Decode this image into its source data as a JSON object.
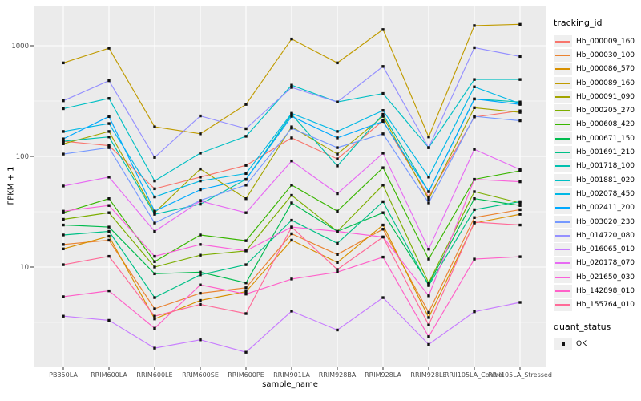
{
  "figure": {
    "background": "#FFFFFF",
    "panel_bg": "#EBEBEB",
    "grid_color": "#FFFFFF",
    "tick_color": "#333333",
    "tick_label_color": "#4D4D4D",
    "marker_color": "#111111"
  },
  "chart_data": {
    "type": "line",
    "title": "",
    "xlabel": "sample_name",
    "ylabel": "FPKM + 1",
    "y_scale": "log10",
    "ylim": [
      1.3,
      2200
    ],
    "y_ticks": [
      10,
      100,
      1000
    ],
    "y_tick_labels": [
      "10",
      "100",
      "1000"
    ],
    "y_minor_ticks": [
      3.1623,
      31.623,
      316.23
    ],
    "grid": "on",
    "legend_position": "right",
    "legend_title": "tracking_id",
    "legend2": {
      "title": "quant_status",
      "item": "OK",
      "marker": "black-square"
    },
    "categories": [
      "PB350LA",
      "RRIM600LA",
      "RRIM600LE",
      "RRIM600SE",
      "RRIM600PE",
      "RRIM901LA",
      "RRIM928BA",
      "RRIM928LA",
      "RRIM928LE",
      "RRII105LA_Control",
      "RRII105LA_Stressed"
    ],
    "series": [
      {
        "name": "Hb_000009_160",
        "color": "#F8766D",
        "values": [
          137,
          125,
          51,
          65,
          83,
          147,
          95,
          210,
          43,
          227,
          258
        ]
      },
      {
        "name": "Hb_000030_100",
        "color": "#EA8331",
        "values": [
          16,
          17.5,
          4.2,
          5.8,
          6.5,
          20,
          13,
          22,
          3.9,
          28,
          33
        ]
      },
      {
        "name": "Hb_000086_570",
        "color": "#D89000",
        "values": [
          14.6,
          19,
          3.4,
          5,
          6,
          17.5,
          11,
          24,
          3.5,
          25,
          30
        ]
      },
      {
        "name": "Hb_000089_160",
        "color": "#C09B00",
        "values": [
          700,
          950,
          185,
          160,
          295,
          1150,
          700,
          1400,
          150,
          1520,
          1560
        ]
      },
      {
        "name": "Hb_000091_090",
        "color": "#A3A500",
        "values": [
          130,
          168,
          31,
          77,
          41.5,
          185,
          105,
          230,
          41,
          275,
          250
        ]
      },
      {
        "name": "Hb_000205_270",
        "color": "#7CAE00",
        "values": [
          27,
          31,
          10,
          12.8,
          14,
          44.5,
          21,
          55,
          7.2,
          48,
          38
        ]
      },
      {
        "name": "Hb_000608_420",
        "color": "#39B600",
        "values": [
          31,
          41.5,
          11.2,
          19.5,
          17.3,
          55,
          32,
          79,
          11.8,
          62,
          74
        ]
      },
      {
        "name": "Hb_000671_150",
        "color": "#00BB4E",
        "values": [
          24,
          23,
          8.7,
          9,
          7.2,
          38,
          21,
          31,
          7,
          41.5,
          36
        ]
      },
      {
        "name": "Hb_001691_210",
        "color": "#00C087",
        "values": [
          19.5,
          21,
          5.3,
          8.5,
          10.5,
          26.5,
          16.4,
          39,
          6.8,
          33,
          39
        ]
      },
      {
        "name": "Hb_001718_100",
        "color": "#00C0AF",
        "values": [
          137,
          150,
          30,
          37,
          62,
          240,
          82,
          240,
          48,
          330,
          310
        ]
      },
      {
        "name": "Hb_001881_020",
        "color": "#00BFC4",
        "values": [
          270,
          334,
          60,
          107,
          152,
          440,
          310,
          370,
          120,
          495,
          495
        ]
      },
      {
        "name": "Hb_002078_450",
        "color": "#00B8E5",
        "values": [
          168,
          198,
          43,
          60,
          70,
          245,
          168,
          260,
          65,
          425,
          300
        ]
      },
      {
        "name": "Hb_002411_200",
        "color": "#00A9FF",
        "values": [
          144,
          229,
          32,
          50,
          62,
          230,
          147,
          207,
          48,
          330,
          295
        ]
      },
      {
        "name": "Hb_003020_230",
        "color": "#7699FF",
        "values": [
          105,
          120,
          25,
          40,
          55,
          180,
          120,
          160,
          38,
          230,
          210
        ]
      },
      {
        "name": "Hb_014720_080",
        "color": "#9590FF",
        "values": [
          318,
          483,
          98,
          232,
          178,
          420,
          310,
          650,
          120,
          960,
          800
        ]
      },
      {
        "name": "Hb_016065_010",
        "color": "#C77CFF",
        "values": [
          3.6,
          3.3,
          1.85,
          2.2,
          1.7,
          4,
          2.7,
          5.3,
          2,
          3.95,
          4.8
        ]
      },
      {
        "name": "Hb_020178_070",
        "color": "#E76BF3",
        "values": [
          54,
          65,
          21,
          39.5,
          31,
          91,
          46,
          107,
          14.5,
          116,
          76
        ]
      },
      {
        "name": "Hb_021650_030",
        "color": "#FA62DB",
        "values": [
          32,
          36,
          12.5,
          16,
          14,
          23,
          21,
          18.7,
          5.5,
          62,
          59
        ]
      },
      {
        "name": "Hb_142898_010",
        "color": "#FF61C9",
        "values": [
          5.4,
          6.1,
          2.8,
          6.9,
          5.7,
          7.8,
          9,
          12.3,
          2.35,
          11.8,
          12.4
        ]
      },
      {
        "name": "Hb_155764_010",
        "color": "#FF6A98",
        "values": [
          10.5,
          12.5,
          3.6,
          4.6,
          3.8,
          23,
          9.5,
          18.7,
          3,
          25.5,
          24
        ]
      }
    ]
  }
}
